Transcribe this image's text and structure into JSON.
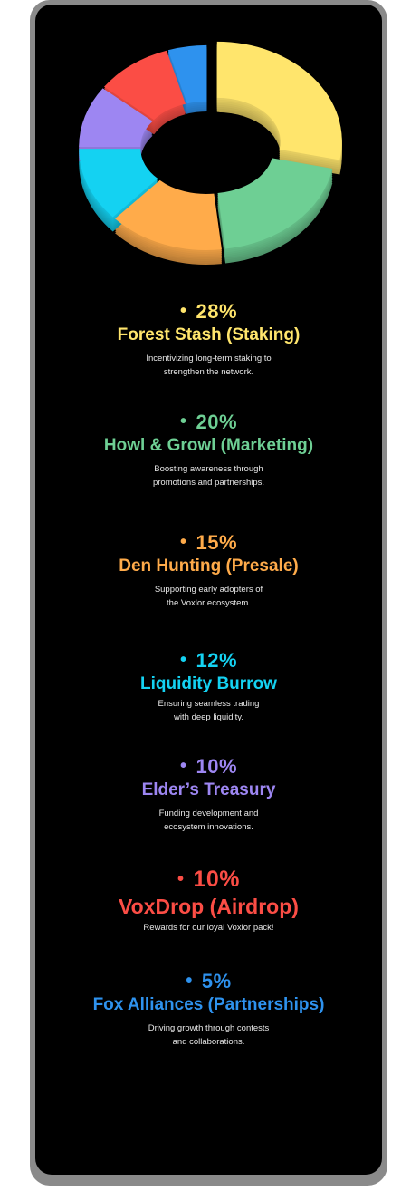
{
  "chart_data": {
    "type": "pie",
    "categories": [
      "Forest Stash (Staking)",
      "Howl & Growl (Marketing)",
      "Den Hunting (Presale)",
      "Liquidity Burrow",
      "Elder's Treasury",
      "VoxDrop (Airdrop)",
      "Fox Alliances (Partnerships)"
    ],
    "values": [
      28,
      20,
      15,
      12,
      10,
      10,
      5
    ],
    "colors": [
      "#ffe56c",
      "#6ecf94",
      "#ffab4a",
      "#14d2f2",
      "#9d86f2",
      "#fb4d45",
      "#2e92ee"
    ],
    "donut": true
  },
  "items": [
    {
      "percent": "28%",
      "name": "Forest Stash (Staking)",
      "desc1": "Incentivizing long-term staking to",
      "desc2": "strengthen the network.",
      "color": "#ffe56c"
    },
    {
      "percent": "20%",
      "name": "Howl & Growl (Marketing)",
      "desc1": "Boosting awareness through",
      "desc2": "promotions and partnerships.",
      "color": "#6ecf94"
    },
    {
      "percent": "15%",
      "name": "Den Hunting (Presale)",
      "desc1": "Supporting early adopters of",
      "desc2": "the Voxlor ecosystem.",
      "color": "#ffab4a"
    },
    {
      "percent": "12%",
      "name": "Liquidity Burrow",
      "desc1": "Ensuring seamless trading",
      "desc2": "with deep liquidity.",
      "color": "#14d2f2"
    },
    {
      "percent": "10%",
      "name": "Elder’s Treasury",
      "desc1": "Funding development and",
      "desc2": "ecosystem innovations.",
      "color": "#9d86f2"
    },
    {
      "percent": "10%",
      "name": "VoxDrop (Airdrop)",
      "desc1": "Rewards for our loyal Voxlor pack!",
      "desc2": "",
      "color": "#fb4d45"
    },
    {
      "percent": "5%",
      "name": "Fox Alliances (Partnerships)",
      "desc1": "Driving growth through contests",
      "desc2": "and collaborations.",
      "color": "#2e92ee"
    }
  ]
}
